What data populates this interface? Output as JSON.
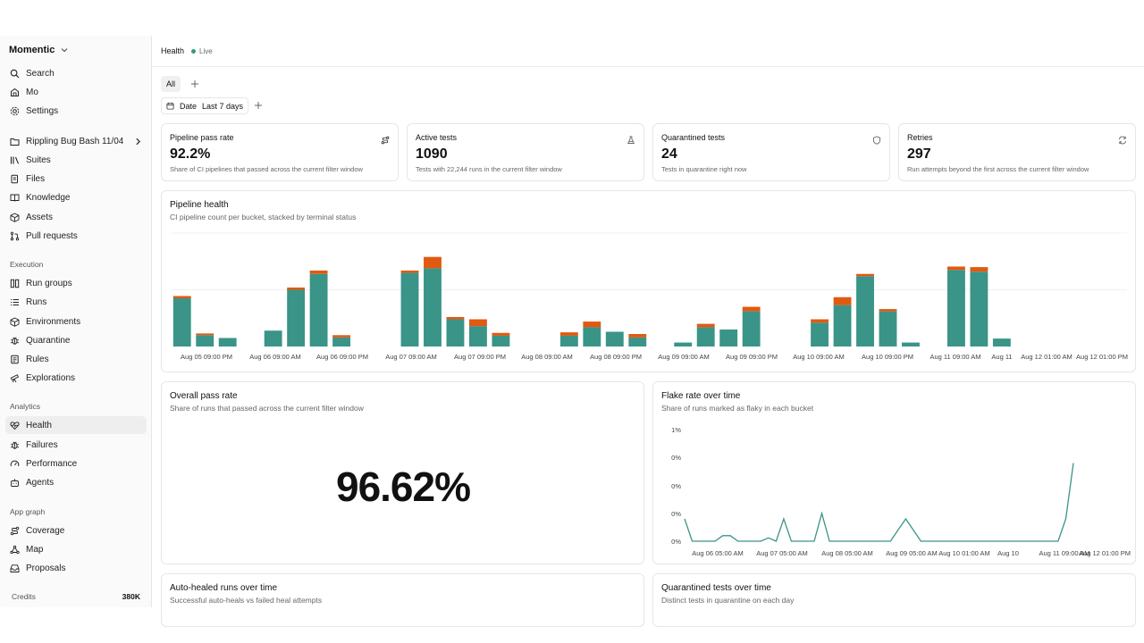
{
  "sidebar": {
    "brand": "Momentic",
    "top_items": [
      {
        "label": "Search",
        "icon": "search-icon"
      },
      {
        "label": "Mo",
        "icon": "chat-icon"
      },
      {
        "label": "Settings",
        "icon": "gear-icon"
      }
    ],
    "project_items": [
      {
        "label": "Rippling Bug Bash 11/04",
        "icon": "folder-icon"
      },
      {
        "label": "Suites",
        "icon": "library-icon"
      },
      {
        "label": "Files",
        "icon": "files-icon"
      },
      {
        "label": "Knowledge",
        "icon": "book-icon"
      },
      {
        "label": "Assets",
        "icon": "box-icon"
      },
      {
        "label": "Pull requests",
        "icon": "git-pull-request-icon"
      }
    ],
    "execution_label": "Execution",
    "execution_items": [
      {
        "label": "Run groups",
        "icon": "columns-icon"
      },
      {
        "label": "Runs",
        "icon": "list-icon"
      },
      {
        "label": "Environments",
        "icon": "cube-icon"
      },
      {
        "label": "Quarantine",
        "icon": "bug-icon"
      },
      {
        "label": "Rules",
        "icon": "rules-icon"
      },
      {
        "label": "Explorations",
        "icon": "telescope-icon"
      }
    ],
    "analytics_label": "Analytics",
    "analytics_items": [
      {
        "label": "Health",
        "icon": "heart-pulse-icon",
        "active": true
      },
      {
        "label": "Failures",
        "icon": "bug-icon"
      },
      {
        "label": "Performance",
        "icon": "gauge-icon"
      },
      {
        "label": "Agents",
        "icon": "bot-icon"
      }
    ],
    "appgraph_label": "App graph",
    "appgraph_items": [
      {
        "label": "Coverage",
        "icon": "route-icon"
      },
      {
        "label": "Map",
        "icon": "map-icon"
      },
      {
        "label": "Proposals",
        "icon": "inbox-icon"
      }
    ],
    "credits_label": "Credits",
    "credits_value": "380K"
  },
  "header": {
    "title": "Health",
    "status": "Live"
  },
  "tabs": {
    "all_label": "All"
  },
  "filter": {
    "field": "Date",
    "value": "Last 7 days"
  },
  "stats": [
    {
      "title": "Pipeline pass rate",
      "value": "92.2%",
      "desc": "Share of CI pipelines that passed across the current filter window",
      "icon": "route-icon"
    },
    {
      "title": "Active tests",
      "value": "1090",
      "desc": "Tests with 22,244 runs in the current filter window",
      "icon": "flask-icon"
    },
    {
      "title": "Quarantined tests",
      "value": "24",
      "desc": "Tests in quarantine right now",
      "icon": "shield-icon"
    },
    {
      "title": "Retries",
      "value": "297",
      "desc": "Run attempts beyond the first across the current filter window",
      "icon": "refresh-icon"
    }
  ],
  "pipeline_health": {
    "title": "Pipeline health",
    "subtitle": "CI pipeline count per bucket, stacked by terminal status"
  },
  "overall_pass": {
    "title": "Overall pass rate",
    "subtitle": "Share of runs that passed across the current filter window",
    "value": "96.62%"
  },
  "flake_rate": {
    "title": "Flake rate over time",
    "subtitle": "Share of runs marked as flaky in each bucket"
  },
  "auto_healed": {
    "title": "Auto-healed runs over time",
    "subtitle": "Successful auto-heals vs failed heal attempts"
  },
  "quarantined_over_time": {
    "title": "Quarantined tests over time",
    "subtitle": "Distinct tests in quarantine on each day"
  },
  "colors": {
    "passed": "#3a9488",
    "failed": "#e05a12",
    "line": "#3a9488",
    "live": "#2e9e7d"
  },
  "chart_data": [
    {
      "type": "bar",
      "name": "pipeline-health",
      "x_tick_labels": [
        "Aug 05 09:00 PM",
        "Aug 06 09:00 AM",
        "Aug 06 09:00 PM",
        "Aug 07 09:00 AM",
        "Aug 07 09:00 PM",
        "Aug 08 09:00 AM",
        "Aug 08 09:00 PM",
        "Aug 09 09:00 AM",
        "Aug 09 09:00 PM",
        "Aug 10 09:00 AM",
        "Aug 10 09:00 PM",
        "Aug 11 09:00 AM",
        "Aug 11",
        "Aug 12 01:00 AM",
        "Aug 12 01:00 PM"
      ],
      "stacked": true,
      "ylim": [
        0,
        20
      ],
      "bars": [
        {
          "slot": 0,
          "passed": 8.5,
          "failed": 0.4
        },
        {
          "slot": 1,
          "passed": 2.0,
          "failed": 0.3
        },
        {
          "slot": 2,
          "passed": 1.5,
          "failed": 0
        },
        {
          "slot": 4,
          "passed": 2.8,
          "failed": 0
        },
        {
          "slot": 5,
          "passed": 10.0,
          "failed": 0.4
        },
        {
          "slot": 6,
          "passed": 12.8,
          "failed": 0.6
        },
        {
          "slot": 7,
          "passed": 1.6,
          "failed": 0.4
        },
        {
          "slot": 10,
          "passed": 13.0,
          "failed": 0.4
        },
        {
          "slot": 11,
          "passed": 13.8,
          "failed": 2.0
        },
        {
          "slot": 12,
          "passed": 4.8,
          "failed": 0.4
        },
        {
          "slot": 13,
          "passed": 3.6,
          "failed": 1.2
        },
        {
          "slot": 14,
          "passed": 1.9,
          "failed": 0.5
        },
        {
          "slot": 17,
          "passed": 1.9,
          "failed": 0.6
        },
        {
          "slot": 18,
          "passed": 3.4,
          "failed": 1.0
        },
        {
          "slot": 19,
          "passed": 2.6,
          "failed": 0
        },
        {
          "slot": 20,
          "passed": 1.6,
          "failed": 0.6
        },
        {
          "slot": 22,
          "passed": 0.7,
          "failed": 0
        },
        {
          "slot": 23,
          "passed": 3.4,
          "failed": 0.6
        },
        {
          "slot": 24,
          "passed": 3.0,
          "failed": 0
        },
        {
          "slot": 25,
          "passed": 6.2,
          "failed": 0.8
        },
        {
          "slot": 28,
          "passed": 4.2,
          "failed": 0.6
        },
        {
          "slot": 29,
          "passed": 7.3,
          "failed": 1.4
        },
        {
          "slot": 30,
          "passed": 12.4,
          "failed": 0.4
        },
        {
          "slot": 31,
          "passed": 6.2,
          "failed": 0.4
        },
        {
          "slot": 32,
          "passed": 0.7,
          "failed": 0
        },
        {
          "slot": 34,
          "passed": 13.5,
          "failed": 0.6
        },
        {
          "slot": 35,
          "passed": 13.2,
          "failed": 0.8
        },
        {
          "slot": 36,
          "passed": 1.4,
          "failed": 0
        }
      ]
    },
    {
      "type": "line",
      "name": "flake-rate",
      "y_tick_labels": [
        "1%",
        "0%",
        "0%",
        "0%",
        "0%"
      ],
      "x_tick_labels": [
        "Aug 06 05:00 AM",
        "Aug 07 05:00 AM",
        "Aug 08 05:00 AM",
        "Aug 09 05:00 AM",
        "Aug 10 01:00 AM",
        "Aug 10",
        "Aug 11 09:00 AM",
        "Aug 12 01:00 PM"
      ],
      "ylim": [
        0,
        1.0
      ],
      "values": [
        0.2,
        0.0,
        0.0,
        0.0,
        0.0,
        0.05,
        0.05,
        0.0,
        0.0,
        0.0,
        0.0,
        0.03,
        0.0,
        0.2,
        0.0,
        0.0,
        0.0,
        0.0,
        0.25,
        0.0,
        0.0,
        0.0,
        0.0,
        0.0,
        0.0,
        0.0,
        0.0,
        0.0,
        0.1,
        0.2,
        0.1,
        0.0,
        0.0,
        0.0,
        0.0,
        0.0,
        0.0,
        0.0,
        0.0,
        0.0,
        0.0,
        0.0,
        0.0,
        0.0,
        0.0,
        0.0,
        0.0,
        0.0,
        0.0,
        0.0,
        0.2,
        0.7
      ]
    }
  ]
}
